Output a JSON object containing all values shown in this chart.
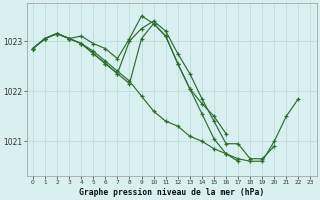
{
  "background_color": "#d8f0f0",
  "grid_color": "#b8d8d8",
  "line_color": "#2d6e2d",
  "title": "Graphe pression niveau de la mer (hPa)",
  "xlabel_hours": [
    0,
    1,
    2,
    3,
    4,
    5,
    6,
    7,
    8,
    9,
    10,
    11,
    12,
    13,
    14,
    15,
    16,
    17,
    18,
    19,
    20,
    21,
    22,
    23
  ],
  "yticks": [
    1021,
    1022,
    1023
  ],
  "ylim": [
    1020.3,
    1023.75
  ],
  "xlim": [
    -0.5,
    23.5
  ],
  "series": [
    {
      "x": [
        0,
        1,
        2,
        3,
        4,
        5,
        6,
        7,
        8,
        9,
        10,
        11,
        12,
        13,
        14,
        15,
        16,
        17,
        18,
        19,
        20,
        21,
        22
      ],
      "y": [
        1022.85,
        1023.05,
        1023.15,
        1023.05,
        1022.95,
        1022.8,
        1022.6,
        1022.4,
        1022.2,
        1021.9,
        1021.6,
        1021.4,
        1021.3,
        1021.1,
        1021.0,
        1020.85,
        1020.75,
        1020.65,
        1020.6,
        1020.6,
        1021.0,
        1021.5,
        1021.85
      ]
    },
    {
      "x": [
        0,
        1,
        2,
        3,
        4,
        5,
        6,
        7,
        8,
        9,
        10,
        11,
        12,
        13,
        14,
        15,
        16,
        17,
        18,
        19,
        20
      ],
      "y": [
        1022.85,
        1023.05,
        1023.15,
        1023.05,
        1022.95,
        1022.75,
        1022.55,
        1022.35,
        1023.0,
        1023.25,
        1023.4,
        1023.2,
        1022.75,
        1022.35,
        1021.85,
        1021.4,
        1020.95,
        1020.95,
        1020.65,
        1020.65,
        1020.9
      ]
    },
    {
      "x": [
        0,
        1,
        2,
        3,
        4,
        5,
        6,
        7,
        8,
        9,
        10,
        11,
        12,
        13,
        14,
        15,
        16
      ],
      "y": [
        1022.85,
        1023.05,
        1023.15,
        1023.05,
        1023.1,
        1022.95,
        1022.85,
        1022.65,
        1023.05,
        1023.5,
        1023.35,
        1023.1,
        1022.55,
        1022.05,
        1021.75,
        1021.5,
        1021.15
      ]
    },
    {
      "x": [
        0,
        1,
        2,
        3,
        4,
        5,
        6,
        7,
        8,
        9,
        10,
        11,
        12,
        13,
        14,
        15,
        16,
        17
      ],
      "y": [
        1022.85,
        1023.05,
        1023.15,
        1023.05,
        1022.95,
        1022.75,
        1022.55,
        1022.35,
        1022.15,
        1023.05,
        1023.35,
        1023.1,
        1022.55,
        1022.05,
        1021.55,
        1021.05,
        1020.75,
        1020.6
      ]
    }
  ]
}
